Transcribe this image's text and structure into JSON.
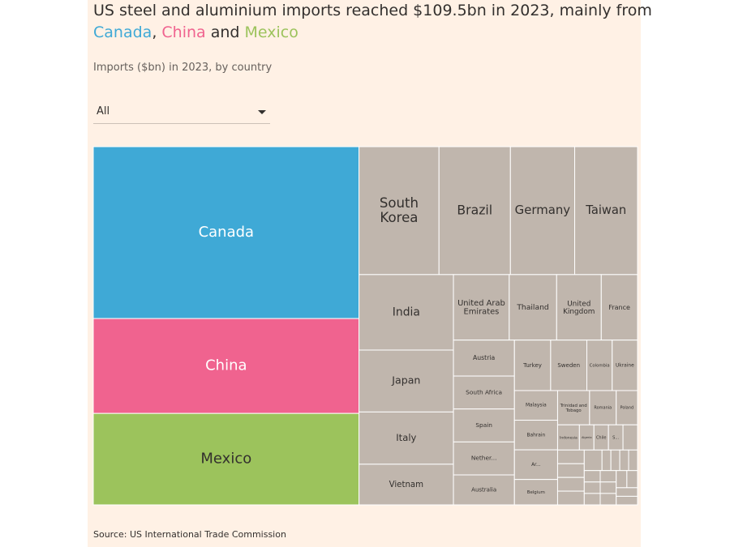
{
  "chart_data": {
    "type": "treemap",
    "title": [
      [
        {
          "text": "US steel and aluminium imports reached $109.5bn in 2023, mainly from"
        }
      ],
      [
        {
          "text": "Canada",
          "color": "#3fa9d6"
        },
        {
          "text": ", "
        },
        {
          "text": "China",
          "color": "#f0638f"
        },
        {
          "text": " and "
        },
        {
          "text": "Mexico",
          "color": "#9cc35c"
        }
      ]
    ],
    "subtitle": "Imports ($bn) in 2023, by country",
    "filter": "All",
    "source": "Source: US International Trade Commission",
    "categories": [
      "Canada",
      "China",
      "Mexico",
      "South Korea",
      "Brazil",
      "Germany",
      "Taiwan",
      "India",
      "Japan",
      "Italy",
      "Vietnam",
      "United Arab Emirates",
      "Thailand",
      "United Kingdom",
      "France",
      "Austria",
      "South Africa",
      "Spain",
      "Nether...",
      "Australia",
      "Turkey",
      "Sweden",
      "Colombia",
      "Ukraine",
      "Malaysia",
      "Bahrain",
      "Ar...",
      "Belgium",
      "Trinidad and Tobago",
      "Romania",
      "Poland",
      "Indonesia",
      "Algeria",
      "Chile",
      "S...",
      null,
      null,
      null,
      null,
      null,
      null,
      null,
      null,
      null,
      null,
      null,
      null,
      null,
      null,
      null,
      null,
      null,
      null,
      null,
      null
    ],
    "values": [
      25.0,
      13.8,
      13.3,
      5.6,
      5.0,
      4.5,
      4.4,
      3.9,
      3.2,
      2.7,
      2.1,
      2.0,
      1.7,
      1.6,
      1.3,
      1.2,
      1.1,
      1.1,
      1.1,
      1.0,
      1.0,
      1.0,
      0.7,
      0.7,
      0.7,
      0.7,
      0.7,
      0.6,
      0.6,
      0.5,
      0.4,
      0.3,
      0.2,
      0.2,
      0.2,
      0.2,
      0.2,
      0.2,
      0.2,
      0.2,
      0.2,
      0.1,
      0.1,
      0.1,
      0.1,
      0.1,
      0.1,
      0.1,
      0.1,
      0.1,
      0.1,
      0.1,
      0.1,
      0.1,
      0.1
    ],
    "colors": [
      "#3fa9d6",
      "#f0638f",
      "#9cc35c",
      "#c0b6ad",
      "#c0b6ad",
      "#c0b6ad",
      "#c0b6ad",
      "#c0b6ad",
      "#c0b6ad",
      "#c0b6ad",
      "#c0b6ad",
      "#c0b6ad",
      "#c0b6ad",
      "#c0b6ad",
      "#c0b6ad",
      "#c0b6ad",
      "#c0b6ad",
      "#c0b6ad",
      "#c0b6ad",
      "#c0b6ad",
      "#c0b6ad",
      "#c0b6ad",
      "#c0b6ad",
      "#c0b6ad",
      "#c0b6ad",
      "#c0b6ad",
      "#c0b6ad",
      "#c0b6ad",
      "#c0b6ad",
      "#c0b6ad",
      "#c0b6ad",
      "#c0b6ad",
      "#c0b6ad",
      "#c0b6ad",
      "#c0b6ad",
      "#c0b6ad",
      "#c0b6ad",
      "#c0b6ad",
      "#c0b6ad",
      "#c0b6ad",
      "#c0b6ad",
      "#c0b6ad",
      "#c0b6ad",
      "#c0b6ad",
      "#c0b6ad",
      "#c0b6ad",
      "#c0b6ad",
      "#c0b6ad",
      "#c0b6ad",
      "#c0b6ad",
      "#c0b6ad",
      "#c0b6ad",
      "#c0b6ad",
      "#c0b6ad",
      "#c0b6ad"
    ]
  }
}
